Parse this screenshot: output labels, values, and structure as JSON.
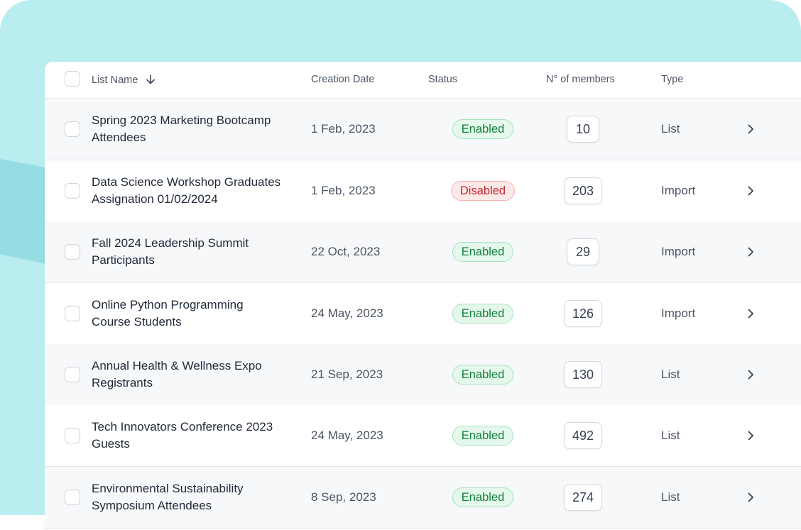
{
  "table": {
    "columns": {
      "name": "List Name",
      "date": "Creation Date",
      "status": "Status",
      "members": "N° of members",
      "type": "Type"
    },
    "sort_icon": "arrow-down-icon",
    "row_icon": "chevron-right-icon",
    "rows": [
      {
        "name": "Spring 2023 Marketing Bootcamp Attendees",
        "date": "1 Feb, 2023",
        "status": "Enabled",
        "members": "10",
        "type": "List"
      },
      {
        "name": "Data Science Workshop Graduates Assignation 01/02/2024",
        "date": "1 Feb, 2023",
        "status": "Disabled",
        "members": "203",
        "type": "Import"
      },
      {
        "name": "Fall 2024 Leadership Summit Participants",
        "date": "22 Oct, 2023",
        "status": "Enabled",
        "members": "29",
        "type": "Import"
      },
      {
        "name": "Online Python Programming Course Students",
        "date": "24 May, 2023",
        "status": "Enabled",
        "members": "126",
        "type": "Import"
      },
      {
        "name": "Annual Health & Wellness Expo Registrants",
        "date": "21 Sep, 2023",
        "status": "Enabled",
        "members": "130",
        "type": "List"
      },
      {
        "name": "Tech Innovators Conference 2023 Guests",
        "date": "24 May, 2023",
        "status": "Enabled",
        "members": "492",
        "type": "List"
      },
      {
        "name": "Environmental Sustainability Symposium Attendees",
        "date": "8 Sep, 2023",
        "status": "Enabled",
        "members": "274",
        "type": "List"
      }
    ]
  },
  "colors": {
    "backdrop": "#b9edef",
    "enabled": "#15803d",
    "disabled": "#c0262d"
  }
}
